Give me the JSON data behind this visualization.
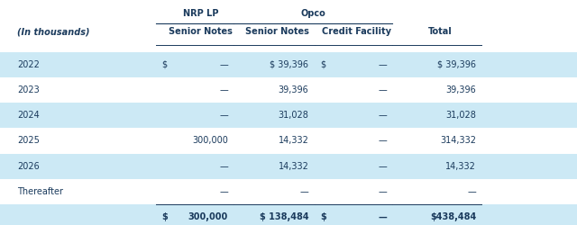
{
  "header_group1_text": "NRP LP",
  "header_group2_text": "Opco",
  "col_headers": [
    "(In thousands)",
    "Senior Notes",
    "Senior Notes",
    "Credit Facility",
    "Total"
  ],
  "rows": [
    [
      "2022",
      "$",
      "—",
      "$ 39,396",
      "$",
      "—",
      "$ 39,396"
    ],
    [
      "2023",
      "",
      "—",
      "39,396",
      "",
      "—",
      "39,396"
    ],
    [
      "2024",
      "",
      "—",
      "31,028",
      "",
      "—",
      "31,028"
    ],
    [
      "2025",
      "",
      "300,000",
      "14,332",
      "",
      "—",
      "314,332"
    ],
    [
      "2026",
      "",
      "—",
      "14,332",
      "",
      "—",
      "14,332"
    ],
    [
      "Thereafter",
      "",
      "—",
      "—",
      "",
      "—",
      "—"
    ]
  ],
  "totals": [
    "",
    "$",
    "300,000",
    "$ 138,484",
    "$",
    "—",
    "$438,484"
  ],
  "shaded_rows": [
    0,
    2,
    4
  ],
  "shade_total": true,
  "shade_color": "#cce9f5",
  "text_color": "#1a3a5c",
  "header_color": "#1a3a5c",
  "bg_color": "#ffffff",
  "font_size": 7.0,
  "header_font_size": 7.0,
  "fig_width": 6.4,
  "fig_height": 2.5,
  "dpi": 100
}
